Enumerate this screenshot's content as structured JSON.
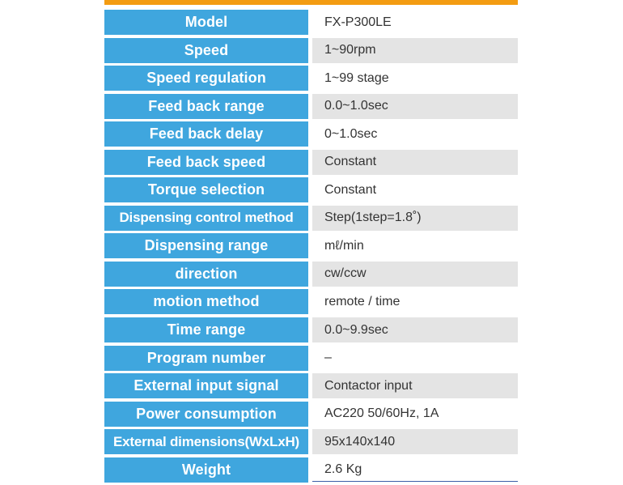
{
  "colors": {
    "accent_bar": "#f39c12",
    "label_bg": "#3fa6de",
    "value_alt_bg": "#e4e4e4"
  },
  "specs": [
    {
      "label": "Model",
      "value": "FX-P300LE"
    },
    {
      "label": "Speed",
      "value": "1~90rpm"
    },
    {
      "label": "Speed regulation",
      "value": "1~99 stage"
    },
    {
      "label": "Feed back range",
      "value": "0.0~1.0sec"
    },
    {
      "label": "Feed back delay",
      "value": "0~1.0sec"
    },
    {
      "label": "Feed back speed",
      "value": "Constant"
    },
    {
      "label": "Torque selection",
      "value": "Constant"
    },
    {
      "label": "Dispensing control method",
      "value": "Step(1step=1.8˚)"
    },
    {
      "label": "Dispensing range",
      "value": "mℓ/min"
    },
    {
      "label": "direction",
      "value": "cw/ccw"
    },
    {
      "label": "motion method",
      "value": "remote / time"
    },
    {
      "label": "Time range",
      "value": "0.0~9.9sec"
    },
    {
      "label": "Program number",
      "value": "–"
    },
    {
      "label": "External input signal",
      "value": "Contactor input"
    },
    {
      "label": "Power consumption",
      "value": "AC220 50/60Hz, 1A"
    },
    {
      "label": "External dimensions(WxLxH)",
      "value": "95x140x140"
    },
    {
      "label": "Weight",
      "value": "2.6 Kg"
    }
  ]
}
